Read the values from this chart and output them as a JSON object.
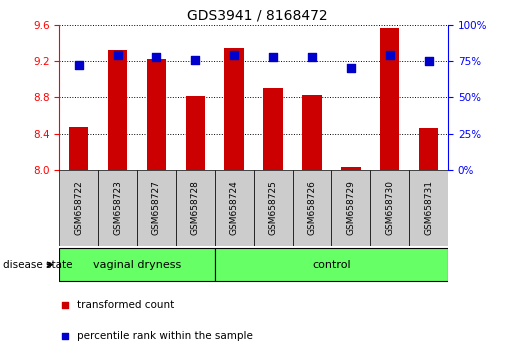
{
  "title": "GDS3941 / 8168472",
  "samples": [
    "GSM658722",
    "GSM658723",
    "GSM658727",
    "GSM658728",
    "GSM658724",
    "GSM658725",
    "GSM658726",
    "GSM658729",
    "GSM658730",
    "GSM658731"
  ],
  "bar_values": [
    8.47,
    9.32,
    9.22,
    8.82,
    9.34,
    8.9,
    8.83,
    8.03,
    9.57,
    8.46
  ],
  "dot_values": [
    9.16,
    9.27,
    9.25,
    9.21,
    9.27,
    9.24,
    9.24,
    9.12,
    9.27,
    9.2
  ],
  "bar_bottom": 8.0,
  "ylim": [
    8.0,
    9.6
  ],
  "yticks_left": [
    8.0,
    8.4,
    8.8,
    9.2,
    9.6
  ],
  "yticks_right": [
    0,
    25,
    50,
    75,
    100
  ],
  "bar_color": "#cc0000",
  "dot_color": "#0000cc",
  "group1_count": 4,
  "group2_count": 6,
  "group1_label": "vaginal dryness",
  "group2_label": "control",
  "group_bg_color": "#66ff66",
  "sample_bg_color": "#cccccc",
  "legend_bar_label": "transformed count",
  "legend_dot_label": "percentile rank within the sample",
  "disease_state_label": "disease state",
  "bar_width": 0.5,
  "dot_size": 35,
  "title_fontsize": 10,
  "tick_fontsize": 7.5,
  "sample_fontsize": 6.5,
  "group_fontsize": 8,
  "legend_fontsize": 7.5
}
